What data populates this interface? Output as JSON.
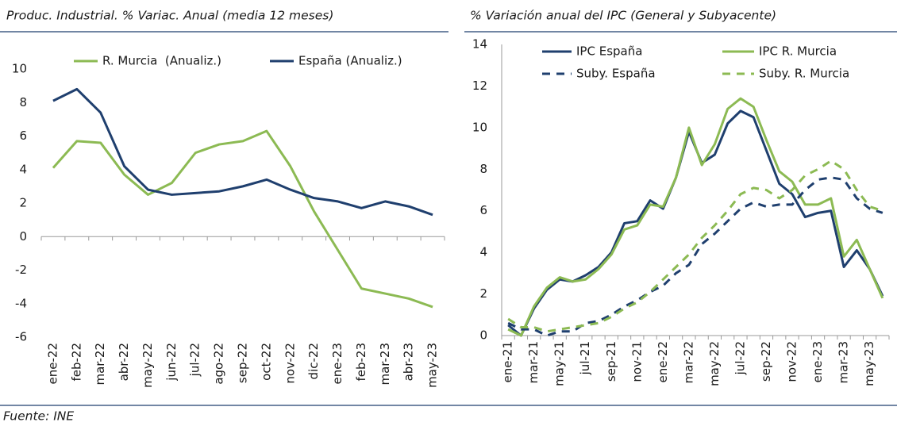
{
  "chart_data": [
    {
      "type": "line",
      "title": "Produc. Industrial. % Variac. Anual (media 12 meses)",
      "categories": [
        "ene-22",
        "feb-22",
        "mar-22",
        "abr-22",
        "may-22",
        "jun-22",
        "jul-22",
        "ago-22",
        "sep-22",
        "oct-22",
        "nov-22",
        "dic-22",
        "ene-23",
        "feb-23",
        "mar-23",
        "abr-23",
        "may-23"
      ],
      "ylim": [
        -6,
        10
      ],
      "yticks": [
        -6,
        -4,
        -2,
        0,
        2,
        4,
        6,
        8,
        10
      ],
      "series": [
        {
          "name": "R. Murcia  (Anualiz.)",
          "color": "#8cba53",
          "style": "solid",
          "values": [
            4.1,
            5.7,
            5.6,
            3.7,
            2.5,
            3.2,
            5.0,
            5.5,
            5.7,
            6.3,
            4.2,
            1.5,
            -0.8,
            -3.1,
            -3.4,
            -3.7,
            -4.2
          ]
        },
        {
          "name": "España (Anualiz.)",
          "color": "#1f3f6e",
          "style": "solid",
          "values": [
            8.1,
            8.8,
            7.4,
            4.2,
            2.8,
            2.5,
            2.6,
            2.7,
            3.0,
            3.4,
            2.8,
            2.3,
            2.1,
            1.7,
            2.1,
            1.8,
            1.3
          ]
        }
      ]
    },
    {
      "type": "line",
      "title": "% Variación anual del IPC (General y Subyacente)",
      "categories": [
        "ene-21",
        null,
        "mar-21",
        null,
        "may-21",
        null,
        "jul-21",
        null,
        "sep-21",
        null,
        "nov-21",
        null,
        "ene-22",
        null,
        "mar-22",
        null,
        "may-22",
        null,
        "jul-22",
        null,
        "sep-22",
        null,
        "nov-22",
        null,
        "ene-23",
        null,
        "mar-23",
        null,
        "may-23",
        null
      ],
      "ylim": [
        0,
        14
      ],
      "yticks": [
        0,
        2,
        4,
        6,
        8,
        10,
        12,
        14
      ],
      "series": [
        {
          "name": "IPC España",
          "color": "#1f3f6e",
          "style": "solid",
          "values": [
            0.5,
            0.0,
            1.3,
            2.2,
            2.7,
            2.6,
            2.9,
            3.3,
            4.0,
            5.4,
            5.5,
            6.5,
            6.1,
            7.6,
            9.8,
            8.3,
            8.7,
            10.2,
            10.8,
            10.5,
            8.9,
            7.3,
            6.8,
            5.7,
            5.9,
            6.0,
            3.3,
            4.1,
            3.2,
            1.9
          ]
        },
        {
          "name": "IPC R. Murcia",
          "color": "#8cba53",
          "style": "solid",
          "values": [
            0.3,
            0.0,
            1.4,
            2.3,
            2.8,
            2.6,
            2.7,
            3.2,
            3.9,
            5.1,
            5.3,
            6.3,
            6.2,
            7.6,
            10.0,
            8.2,
            9.2,
            10.9,
            11.4,
            11.0,
            9.4,
            7.9,
            7.4,
            6.3,
            6.3,
            6.6,
            3.8,
            4.6,
            3.2,
            1.8
          ]
        },
        {
          "name": "Suby. España",
          "color": "#1f3f6e",
          "style": "dashed",
          "values": [
            0.6,
            0.3,
            0.3,
            0.0,
            0.2,
            0.2,
            0.6,
            0.7,
            1.0,
            1.4,
            1.7,
            2.1,
            2.4,
            3.0,
            3.4,
            4.4,
            4.9,
            5.5,
            6.1,
            6.4,
            6.2,
            6.3,
            6.3,
            7.0,
            7.5,
            7.6,
            7.5,
            6.6,
            6.1,
            5.9
          ]
        },
        {
          "name": "Suby. R. Murcia",
          "color": "#8cba53",
          "style": "dashed",
          "values": [
            0.8,
            0.4,
            0.4,
            0.2,
            0.3,
            0.4,
            0.5,
            0.6,
            0.9,
            1.3,
            1.6,
            2.1,
            2.7,
            3.3,
            3.9,
            4.7,
            5.3,
            6.0,
            6.8,
            7.1,
            7.0,
            6.6,
            7.0,
            7.7,
            8.0,
            8.4,
            8.0,
            7.0,
            6.2,
            6.0
          ]
        }
      ]
    }
  ],
  "source": "Fuente: INE"
}
